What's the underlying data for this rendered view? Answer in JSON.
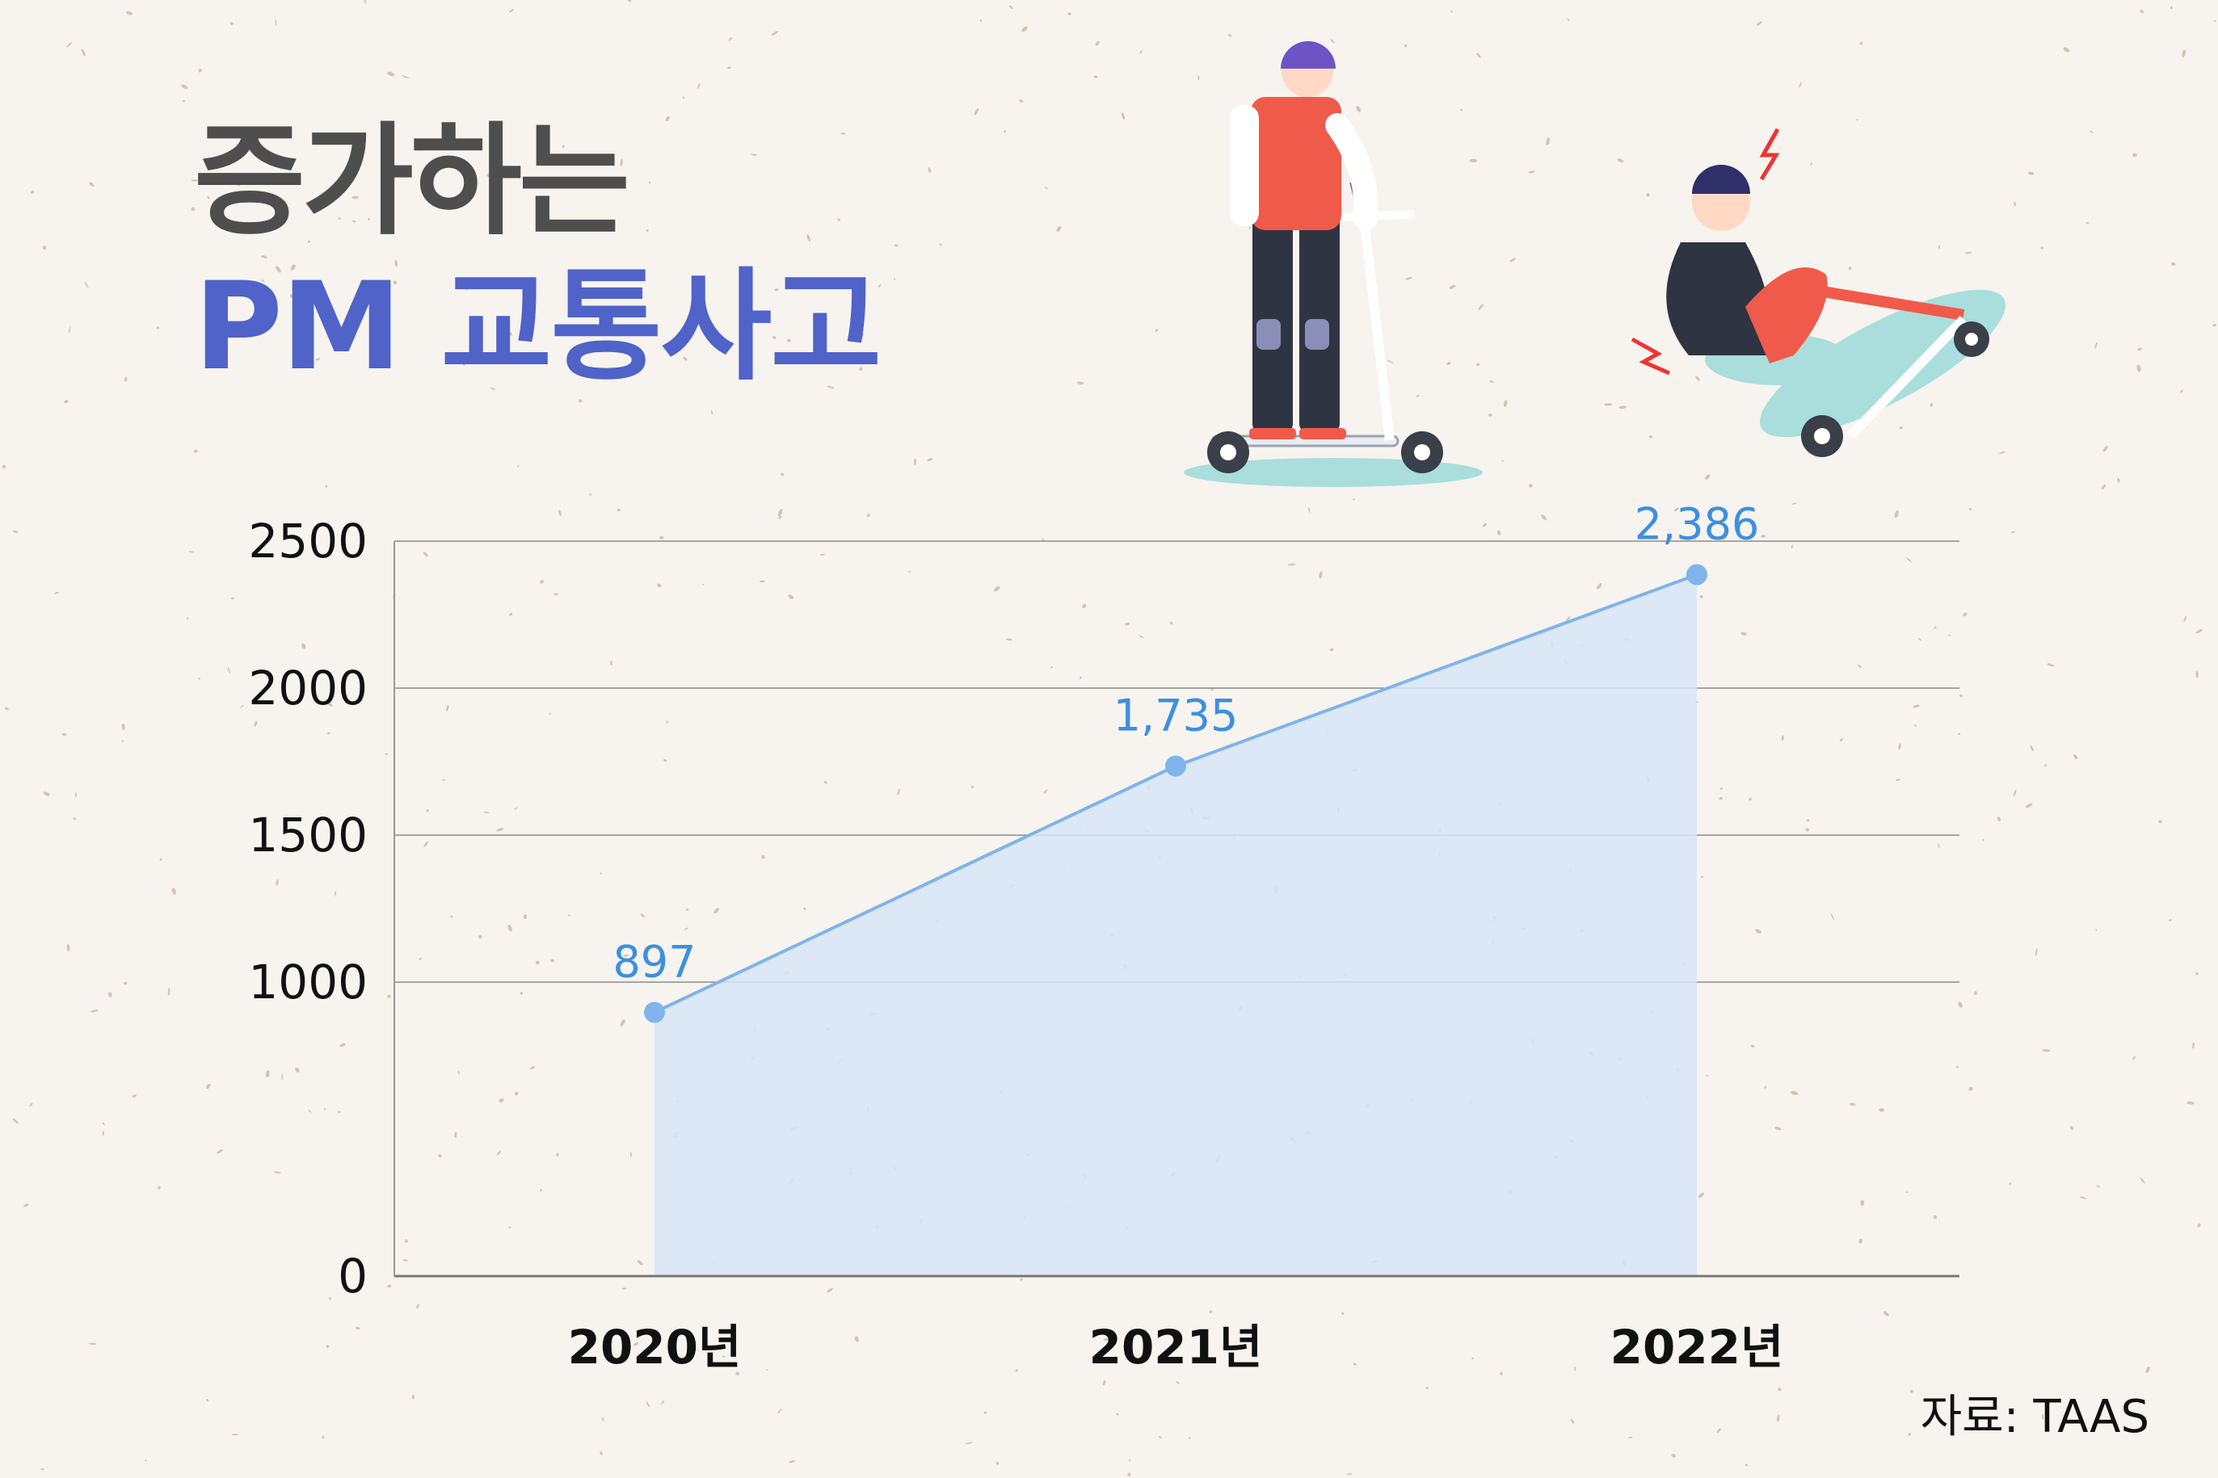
{
  "title": {
    "line1": "증가하는",
    "line2": "PM 교통사고"
  },
  "source": "자료: TAAS",
  "colors": {
    "background": "#f7f3ee",
    "title_dark": "#4e4e4e",
    "title_accent": "#4f63c9",
    "line": "#7fb4ec",
    "area": "#d7e5f6",
    "data_label": "#3d8fe0",
    "grid": "#8c8c8c"
  },
  "illustrations": {
    "left": "person-riding-scooter-illustration",
    "right": "person-fallen-from-scooter-illustration"
  },
  "chart_data": {
    "type": "area",
    "categories": [
      "2020년",
      "2021년",
      "2022년"
    ],
    "values": [
      897,
      1735,
      2386
    ],
    "value_labels": [
      "897",
      "1,735",
      "2,386"
    ],
    "yticks": [
      "0",
      "1000",
      "1500",
      "2000",
      "2500"
    ],
    "ytick_values": [
      0,
      1000,
      1500,
      2000,
      2500
    ],
    "ylim": [
      0,
      2500
    ],
    "grid": true,
    "title": "",
    "xlabel": "",
    "ylabel": ""
  }
}
